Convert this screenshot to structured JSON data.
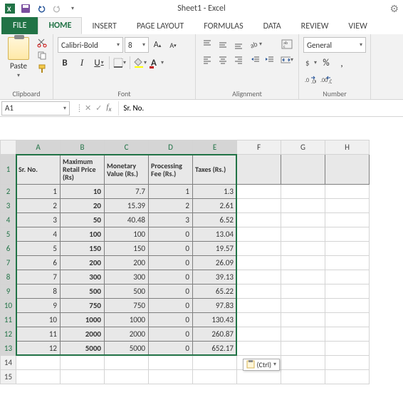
{
  "title": "Sheet1 - Excel",
  "tabs": {
    "file": "FILE",
    "home": "HOME",
    "insert": "INSERT",
    "pageLayout": "PAGE LAYOUT",
    "formulas": "FORMULAS",
    "data": "DATA",
    "review": "REVIEW",
    "view": "VIEW"
  },
  "ribbon": {
    "clipboard": {
      "paste": "Paste",
      "label": "Clipboard"
    },
    "font": {
      "name": "Calibri-Bold",
      "size": "8",
      "label": "Font",
      "b": "B",
      "i": "I",
      "u": "U"
    },
    "alignment": {
      "label": "Alignment"
    },
    "number": {
      "format": "General",
      "label": "Number"
    }
  },
  "nameBox": "A1",
  "formula": "Sr. No.",
  "columns": [
    "A",
    "B",
    "C",
    "D",
    "E",
    "F",
    "G",
    "H"
  ],
  "headers": [
    "Sr. No.",
    "Maximum Retail Price (Rs)",
    "Monetary Value (Rs.)",
    "Processing Fee (Rs.)",
    "Taxes (Rs.)"
  ],
  "rows": [
    [
      "1",
      "10",
      "7.7",
      "1",
      "1.3"
    ],
    [
      "2",
      "20",
      "15.39",
      "2",
      "2.61"
    ],
    [
      "3",
      "50",
      "40.48",
      "3",
      "6.52"
    ],
    [
      "4",
      "100",
      "100",
      "0",
      "13.04"
    ],
    [
      "5",
      "150",
      "150",
      "0",
      "19.57"
    ],
    [
      "6",
      "200",
      "200",
      "0",
      "26.09"
    ],
    [
      "7",
      "300",
      "300",
      "0",
      "39.13"
    ],
    [
      "8",
      "500",
      "500",
      "0",
      "65.22"
    ],
    [
      "9",
      "750",
      "750",
      "0",
      "97.83"
    ],
    [
      "10",
      "1000",
      "1000",
      "0",
      "130.43"
    ],
    [
      "11",
      "2000",
      "2000",
      "0",
      "260.87"
    ],
    [
      "12",
      "5000",
      "5000",
      "0",
      "652.17"
    ]
  ],
  "pasteOptions": "(Ctrl) ",
  "colors": {
    "accent": "#217346",
    "ribbonbg": "#f2f2f2",
    "border": "#d4d4d4",
    "fill": "#ffff00",
    "fontcolor": "#c00000"
  }
}
